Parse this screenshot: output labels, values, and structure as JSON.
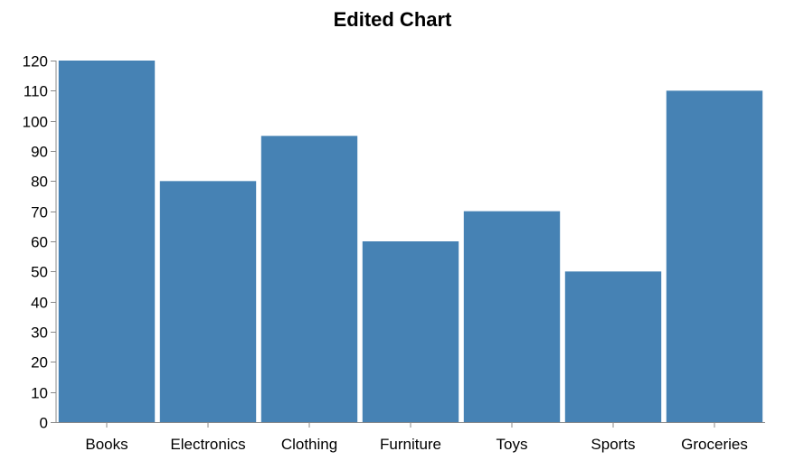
{
  "chart_data": {
    "type": "bar",
    "title": "Edited Chart",
    "xlabel": "",
    "ylabel": "",
    "categories": [
      "Books",
      "Electronics",
      "Clothing",
      "Furniture",
      "Toys",
      "Sports",
      "Groceries"
    ],
    "values": [
      120,
      80,
      95,
      60,
      70,
      50,
      110
    ],
    "ylim": [
      0,
      120
    ],
    "yticks": [
      0,
      10,
      20,
      30,
      40,
      50,
      60,
      70,
      80,
      90,
      100,
      110,
      120
    ],
    "grid": false,
    "legend": "none",
    "colors": {
      "bar": "#4682b4",
      "axis": "#888888",
      "text": "#000000"
    }
  }
}
